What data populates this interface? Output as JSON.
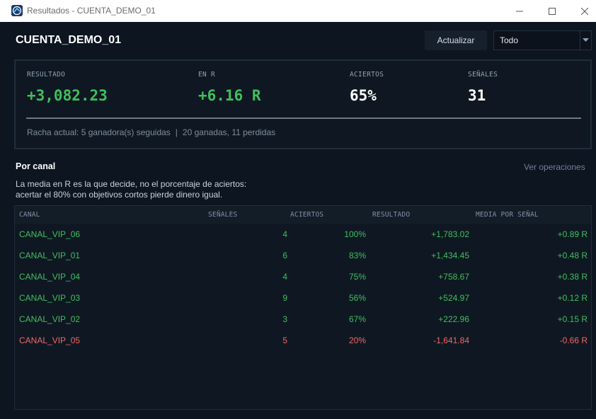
{
  "window": {
    "title": "Resultados - CUENTA_DEMO_01"
  },
  "header": {
    "account": "CUENTA_DEMO_01",
    "refresh_label": "Actualizar",
    "filter_value": "Todo"
  },
  "stats": {
    "resultado_label": "RESULTADO",
    "resultado_value": "+3,082.23",
    "r_label": "EN R",
    "r_value": "+6.16 R",
    "aciertos_label": "ACIERTOS",
    "aciertos_value": "65%",
    "senales_label": "SEÑALES",
    "senales_value": "31",
    "streak": "Racha actual: 5 ganadora(s) seguidas",
    "streak_separator": "|",
    "record": "20 ganadas, 11 perdidas"
  },
  "channels": {
    "title": "Por canal",
    "link_label": "Ver operaciones",
    "note_line1": "La media en R es la que decide, no el porcentaje de aciertos:",
    "note_line2": "acertar el 80% con objetivos cortos pierde dinero igual.",
    "columns": [
      "CANAL",
      "SEÑALES",
      "ACIERTOS",
      "RESULTADO",
      "MEDIA POR SEÑAL"
    ],
    "rows": [
      {
        "canal": "CANAL_VIP_06",
        "senales": "4",
        "aciertos": "100%",
        "resultado": "+1,783.02",
        "media": "+0.89 R",
        "status": "positive"
      },
      {
        "canal": "CANAL_VIP_01",
        "senales": "6",
        "aciertos": "83%",
        "resultado": "+1,434.45",
        "media": "+0.48 R",
        "status": "positive"
      },
      {
        "canal": "CANAL_VIP_04",
        "senales": "4",
        "aciertos": "75%",
        "resultado": "+758.67",
        "media": "+0.38 R",
        "status": "positive"
      },
      {
        "canal": "CANAL_VIP_03",
        "senales": "9",
        "aciertos": "56%",
        "resultado": "+524.97",
        "media": "+0.12 R",
        "status": "positive"
      },
      {
        "canal": "CANAL_VIP_02",
        "senales": "3",
        "aciertos": "67%",
        "resultado": "+222.96",
        "media": "+0.15 R",
        "status": "positive"
      },
      {
        "canal": "CANAL_VIP_05",
        "senales": "5",
        "aciertos": "20%",
        "resultado": "-1,641.84",
        "media": "-0.66 R",
        "status": "negative"
      }
    ]
  },
  "colors": {
    "positive": "#3fbf5e",
    "negative": "#f06666",
    "background": "#0d1520"
  },
  "icons": {
    "app": "app-logo-icon",
    "minimize": "minimize-icon",
    "maximize": "maximize-icon",
    "close": "close-icon",
    "dropdown": "chevron-down-icon"
  }
}
